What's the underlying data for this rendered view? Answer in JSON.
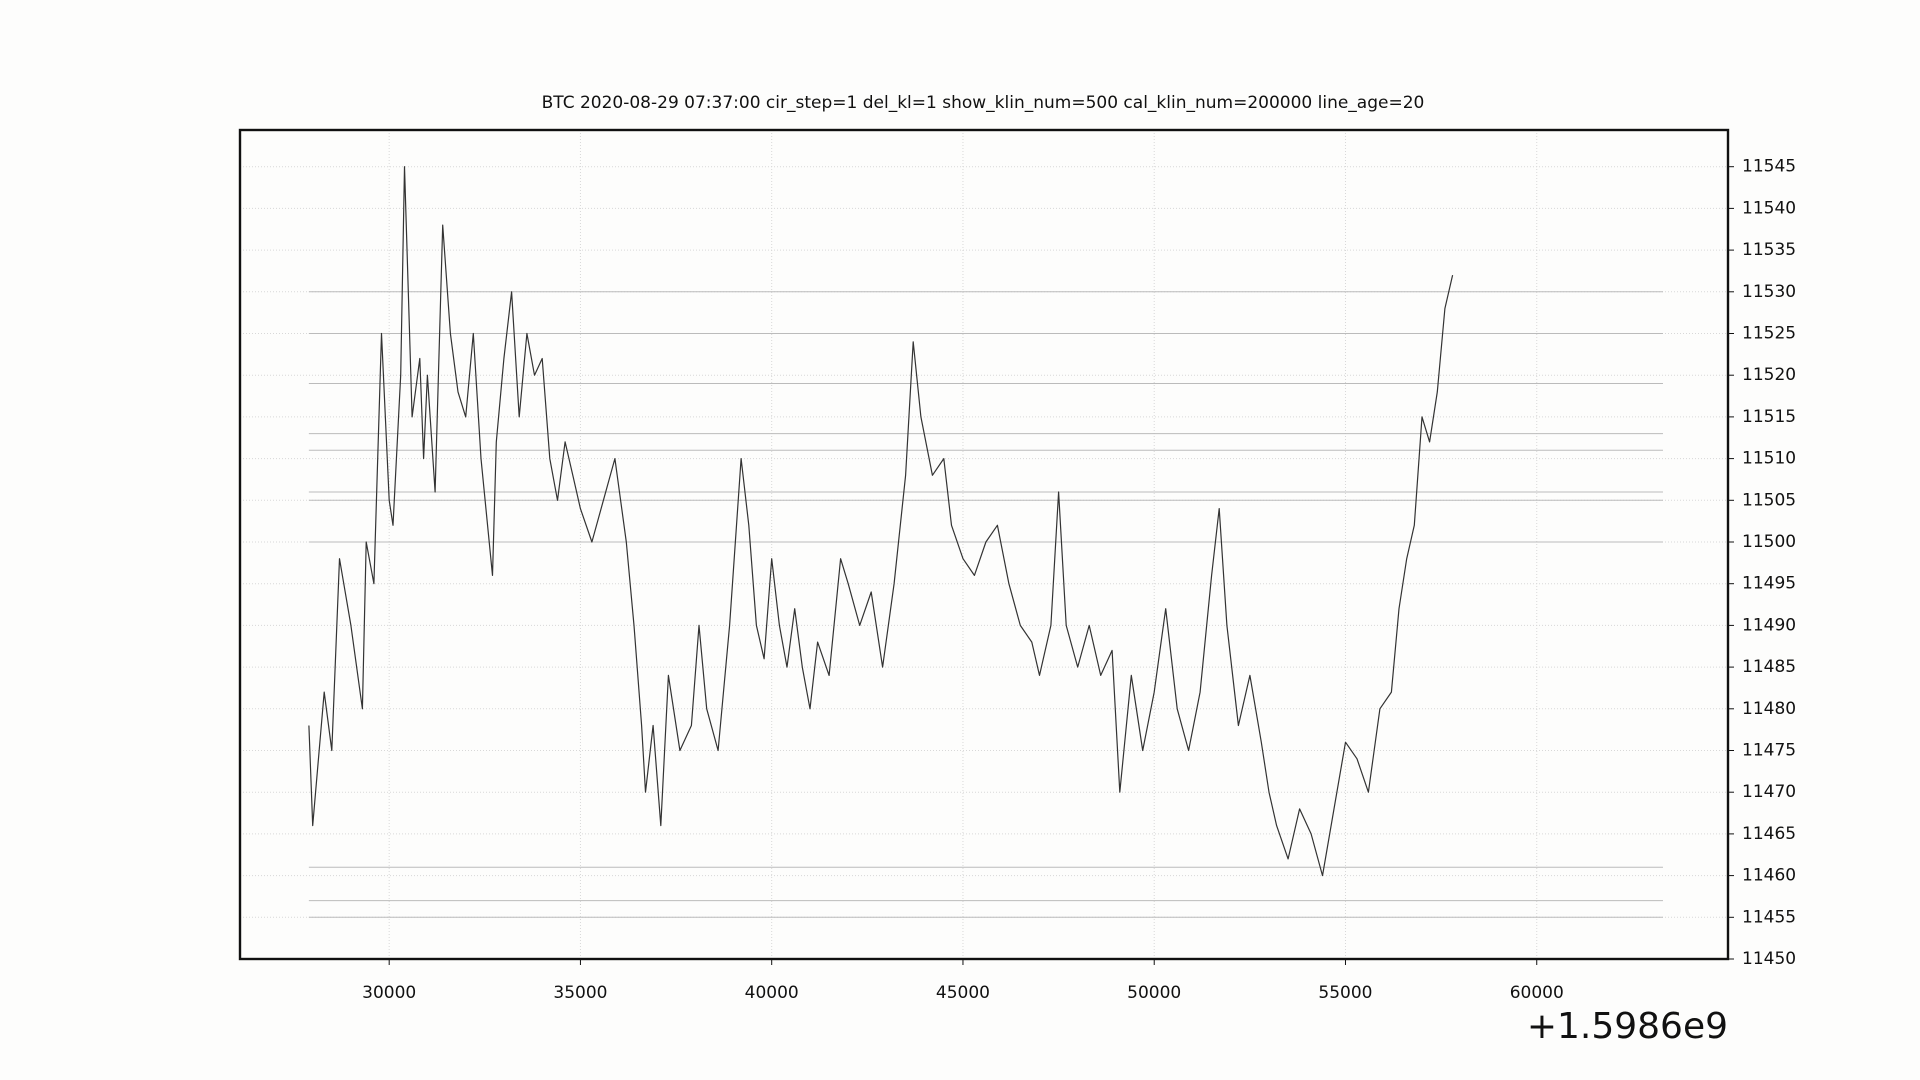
{
  "chart_data": {
    "type": "line",
    "title": "BTC    2020-08-29 07:37:00 cir_step=1 del_kl=1 show_klin_num=500 cal_klin_num=200000 line_age=20",
    "x_offset_text": "+1.5986e9",
    "x": [
      27900,
      28000,
      28300,
      28500,
      28700,
      29000,
      29300,
      29400,
      29600,
      29800,
      30000,
      30100,
      30300,
      30400,
      30600,
      30800,
      30900,
      31000,
      31200,
      31400,
      31600,
      31800,
      32000,
      32200,
      32400,
      32700,
      32800,
      33000,
      33200,
      33400,
      33600,
      33800,
      34000,
      34200,
      34400,
      34600,
      34800,
      35000,
      35300,
      35600,
      35900,
      36200,
      36400,
      36600,
      36700,
      36900,
      37100,
      37300,
      37600,
      37900,
      38100,
      38300,
      38600,
      38900,
      39200,
      39400,
      39600,
      39800,
      40000,
      40200,
      40400,
      40600,
      40800,
      41000,
      41200,
      41500,
      41800,
      42000,
      42300,
      42600,
      42900,
      43200,
      43500,
      43700,
      43900,
      44200,
      44500,
      44700,
      45000,
      45300,
      45600,
      45900,
      46200,
      46500,
      46800,
      47000,
      47300,
      47500,
      47700,
      48000,
      48300,
      48600,
      48900,
      49100,
      49400,
      49700,
      50000,
      50300,
      50600,
      50900,
      51200,
      51500,
      51700,
      51900,
      52200,
      52500,
      52800,
      53000,
      53200,
      53500,
      53800,
      54100,
      54400,
      54700,
      55000,
      55300,
      55600,
      55900,
      56200,
      56400,
      56600,
      56800,
      57000,
      57200,
      57400,
      57600,
      57800
    ],
    "values": [
      11478,
      11466,
      11482,
      11475,
      11498,
      11490,
      11480,
      11500,
      11495,
      11525,
      11505,
      11502,
      11520,
      11545,
      11515,
      11522,
      11510,
      11520,
      11506,
      11538,
      11525,
      11518,
      11515,
      11525,
      11510,
      11496,
      11512,
      11522,
      11530,
      11515,
      11525,
      11520,
      11522,
      11510,
      11505,
      11512,
      11508,
      11504,
      11500,
      11505,
      11510,
      11500,
      11490,
      11478,
      11470,
      11478,
      11466,
      11484,
      11475,
      11478,
      11490,
      11480,
      11475,
      11490,
      11510,
      11502,
      11490,
      11486,
      11498,
      11490,
      11485,
      11492,
      11485,
      11480,
      11488,
      11484,
      11498,
      11495,
      11490,
      11494,
      11485,
      11495,
      11508,
      11524,
      11515,
      11508,
      11510,
      11502,
      11498,
      11496,
      11500,
      11502,
      11495,
      11490,
      11488,
      11484,
      11490,
      11506,
      11490,
      11485,
      11490,
      11484,
      11487,
      11470,
      11484,
      11475,
      11482,
      11492,
      11480,
      11475,
      11482,
      11496,
      11504,
      11490,
      11478,
      11484,
      11476,
      11470,
      11466,
      11462,
      11468,
      11465,
      11460,
      11468,
      11476,
      11474,
      11470,
      11480,
      11482,
      11492,
      11498,
      11502,
      11515,
      11512,
      11518,
      11528,
      11532
    ],
    "color": "#333333",
    "levels": [
      11530,
      11525,
      11519,
      11513,
      11511,
      11506,
      11505,
      11500,
      11461,
      11457,
      11455
    ],
    "levels_x": [
      27900,
      63300
    ],
    "levels_color": "#bbbbbb",
    "xlim": [
      26100,
      65000
    ],
    "ylim": [
      11450,
      11549.4
    ],
    "xticks": [
      30000,
      35000,
      40000,
      45000,
      50000,
      55000,
      60000
    ],
    "yticks": [
      11450,
      11455,
      11460,
      11465,
      11470,
      11475,
      11480,
      11485,
      11490,
      11495,
      11500,
      11505,
      11510,
      11515,
      11520,
      11525,
      11530,
      11535,
      11540,
      11545
    ],
    "y_axis_side": "right",
    "grid": true
  }
}
